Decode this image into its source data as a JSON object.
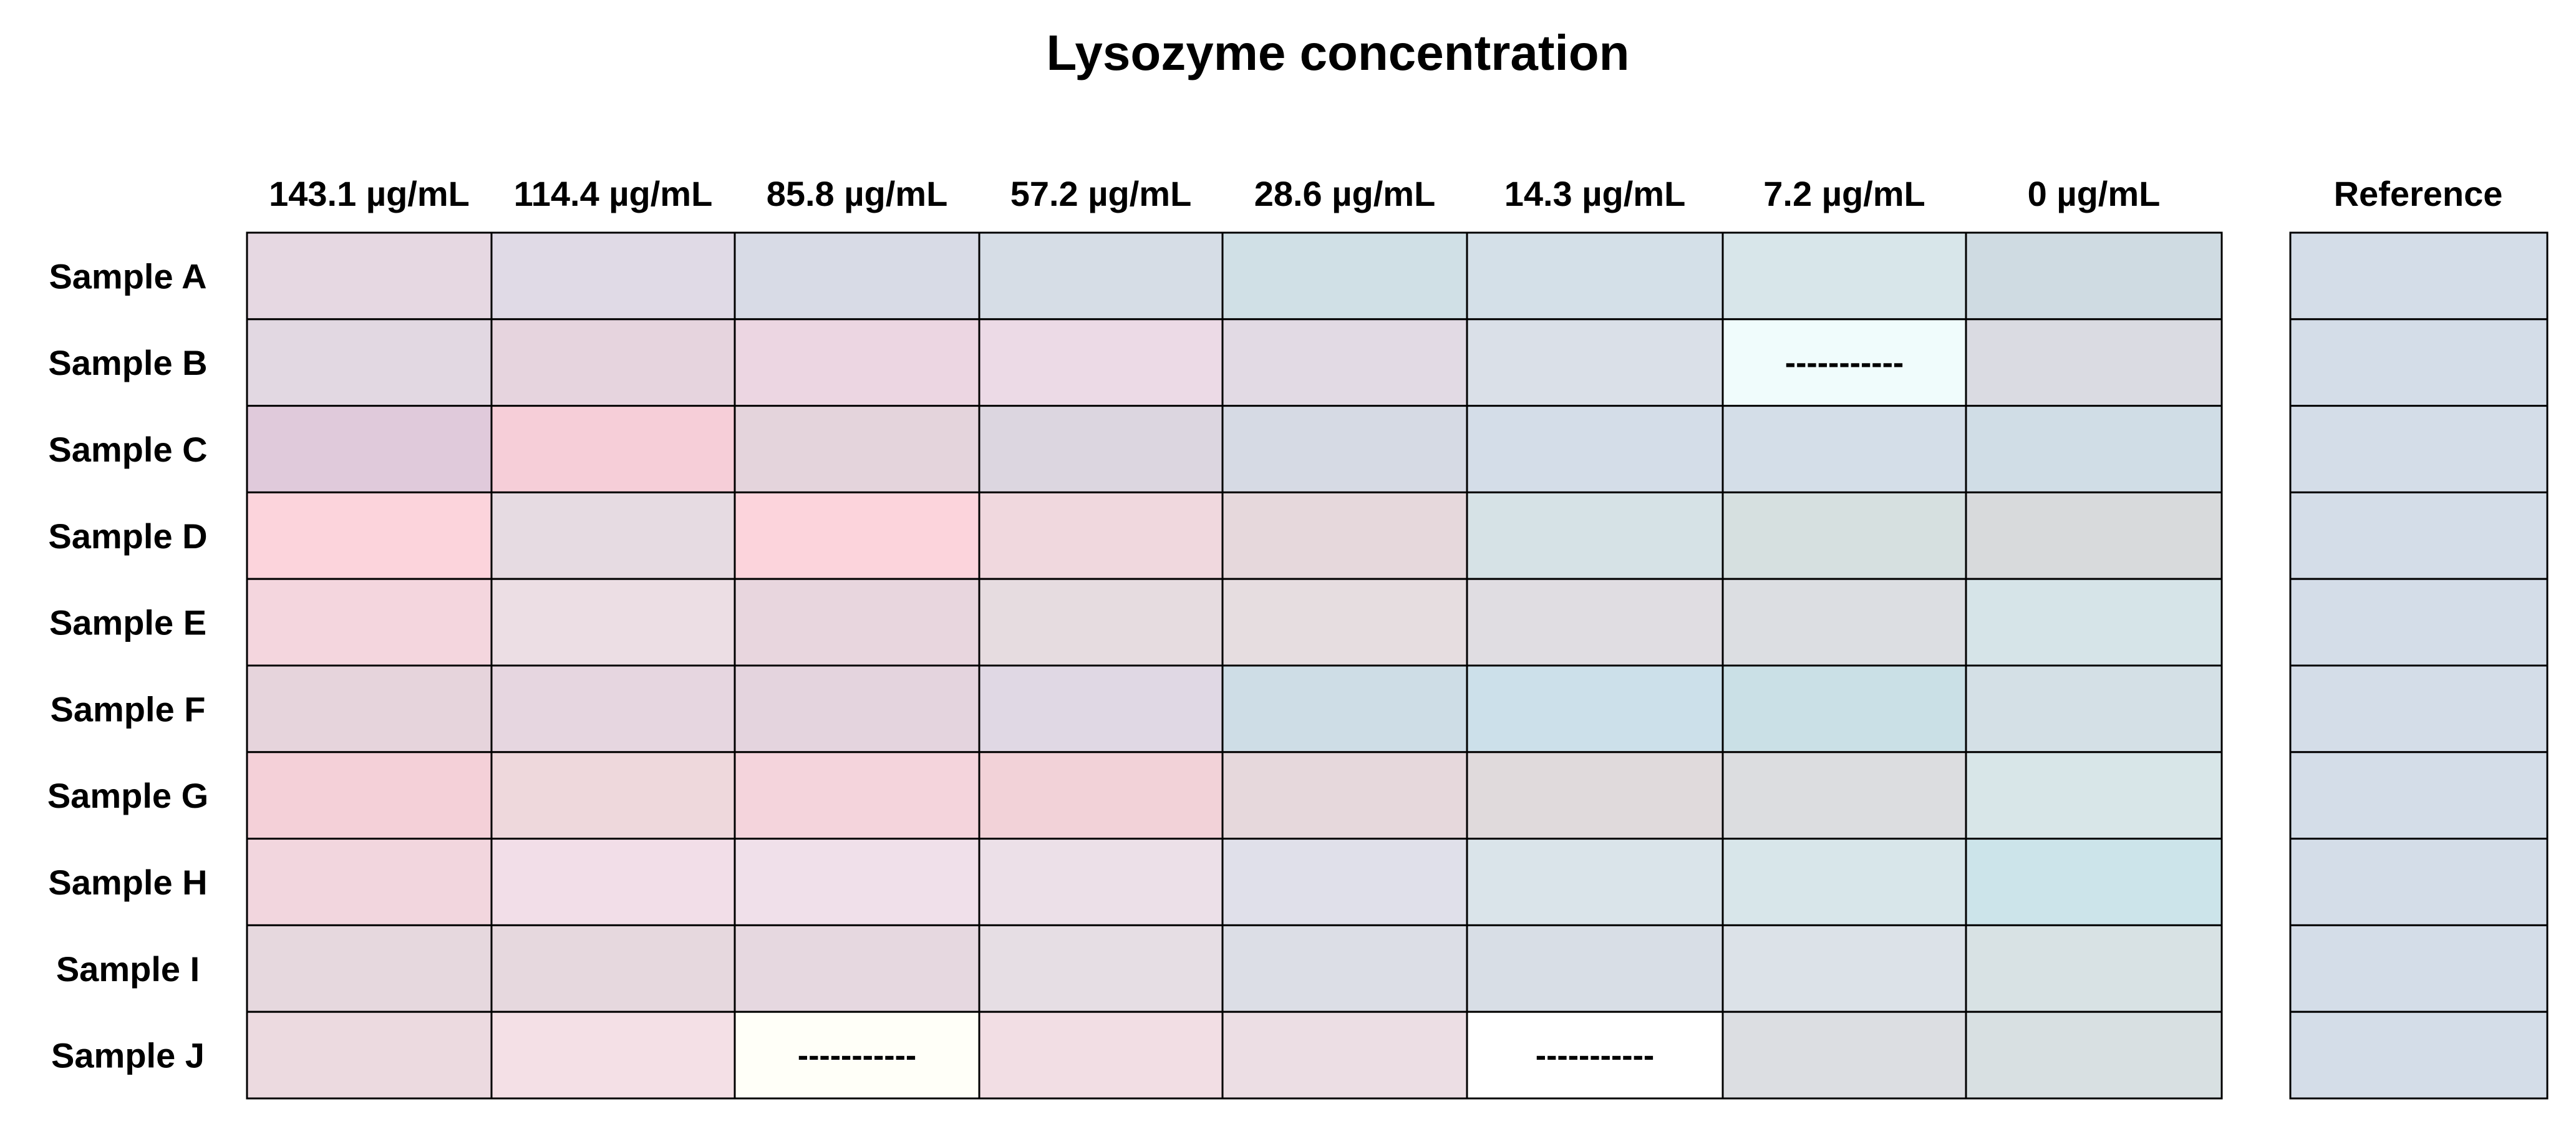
{
  "chart_data": {
    "type": "heatmap",
    "title": "Lysozyme concentration",
    "columns": [
      "143.1 µg/mL",
      "114.4 µg/mL",
      "85.8 µg/mL",
      "57.2 µg/mL",
      "28.6 µg/mL",
      "14.3 µg/mL",
      "7.2 µg/mL",
      "0 µg/mL"
    ],
    "rows": [
      "Sample A",
      "Sample B",
      "Sample C",
      "Sample D",
      "Sample E",
      "Sample F",
      "Sample G",
      "Sample H",
      "Sample I",
      "Sample J"
    ],
    "reference_label": "Reference",
    "missing_marker": "-----------",
    "cell_colors": [
      [
        "#e6d8e2",
        "#e0dae6",
        "#d8dbe6",
        "#d6dde6",
        "#d0e0e6",
        "#d4e0e8",
        "#d8e6ea",
        "#cfdbe2"
      ],
      [
        "#e2d8e2",
        "#e6d4de",
        "#ecd6e2",
        "#ecdae6",
        "#e2dae4",
        "#dae0e8",
        null,
        "#dadbe2"
      ],
      [
        "#e0cadb",
        "#f6ced8",
        "#e4d4dc",
        "#dcd6e0",
        "#d6dae4",
        "#d4dde8",
        "#d4dee8",
        "#d0dde6"
      ],
      [
        "#fcd4dc",
        "#e6dbe2",
        "#fcd4dc",
        "#f0d8de",
        "#e6d8dc",
        "#d6e2e6",
        "#d6e0e0",
        "#d8dadc"
      ],
      [
        "#f4d6de",
        "#ecdee4",
        "#e8d6de",
        "#e6dce0",
        "#e6dde0",
        "#e0dde2",
        "#dcdee2",
        "#d6e4e8"
      ],
      [
        "#e6d4dc",
        "#e6d6e0",
        "#e4d4de",
        "#e0d8e4",
        "#cedde6",
        "#cce0ea",
        "#cae0e6",
        "#d4e0e6"
      ],
      [
        "#f4d0d8",
        "#eed8dc",
        "#f4d4dc",
        "#f2d2d8",
        "#e6d8dc",
        "#e0dadc",
        "#dcdde0",
        "#d8e6e8"
      ],
      [
        "#f2d6de",
        "#f2dee8",
        "#f0e0ea",
        "#ece0e8",
        "#e0e0ea",
        "#dae4ea",
        "#d8e6ea",
        "#cce4ea"
      ],
      [
        "#e6d8de",
        "#e6d8de",
        "#e6d8e0",
        "#e6dee4",
        "#dcdee6",
        "#d8dee6",
        "#dce2e8",
        "#d8e2e4"
      ],
      [
        "#ecdae0",
        "#f4e0e6",
        null,
        "#f2dee4",
        "#ecdee4",
        null,
        "#dcdee2",
        "#d8e0e2"
      ]
    ],
    "reference_colors": [
      "#d4dde8",
      "#d4dde8",
      "#d4dde8",
      "#d4dde8",
      "#d4dde8",
      "#d4dde8",
      "#d4dde8",
      "#d4dde8",
      "#d4dde8",
      "#d4dde8"
    ],
    "missing_cell_colors": {
      "1-6": "#f0fcfc",
      "9-2": "#fffff8",
      "9-5": "#ffffff"
    },
    "grid_stroke": "#000000"
  }
}
